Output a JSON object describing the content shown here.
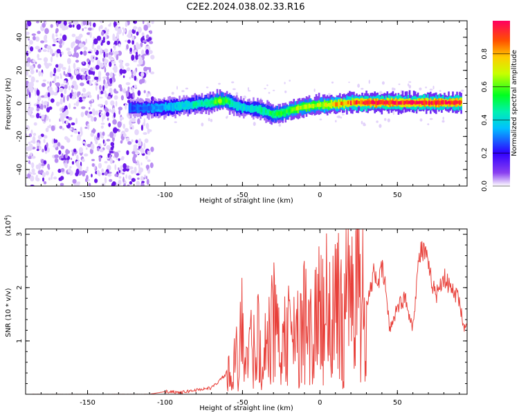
{
  "title": "C2E2.2024.038.02.33.R16",
  "chart_data": [
    {
      "type": "heatmap",
      "xlabel": "Height of straight line (km)",
      "ylabel": "Frequency (Hz)",
      "xlim": [
        -190,
        95
      ],
      "ylim": [
        -50,
        50
      ],
      "xticks": [
        -150,
        -100,
        -50,
        0,
        50
      ],
      "yticks": [
        -40,
        -20,
        0,
        20,
        40
      ],
      "ridge": {
        "x": [
          -123,
          -110,
          -100,
          -90,
          -80,
          -70,
          -65,
          -60,
          -55,
          -50,
          -45,
          -40,
          -35,
          -30,
          -25,
          -20,
          -15,
          -10,
          -5,
          0,
          5,
          10,
          15,
          20,
          25,
          30,
          40,
          50,
          60,
          70,
          80,
          92
        ],
        "frequency": [
          -3,
          -3,
          -2.5,
          -1.5,
          -0.5,
          0.5,
          1.5,
          1.5,
          -1,
          -2.5,
          -3,
          -3.5,
          -5,
          -6.5,
          -6,
          -4.5,
          -3,
          -2,
          -1.5,
          -1,
          -1,
          -0.5,
          0,
          0.5,
          0.5,
          0.5,
          0.5,
          0.5,
          0.5,
          0.5,
          0.5,
          0.5
        ],
        "amplitude": [
          0.25,
          0.3,
          0.35,
          0.4,
          0.45,
          0.5,
          0.65,
          0.55,
          0.45,
          0.4,
          0.4,
          0.45,
          0.5,
          0.55,
          0.55,
          0.6,
          0.7,
          0.65,
          0.65,
          0.7,
          0.75,
          0.8,
          0.85,
          0.9,
          0.95,
          0.98,
          1.0,
          0.98,
          0.98,
          0.98,
          0.96,
          0.95
        ]
      },
      "noise_region_x": [
        -190,
        -108
      ]
    },
    {
      "type": "line",
      "xlabel": "Height of straight line (km)",
      "ylabel": "SNR (10 * v/v)",
      "multiplier": "(x10",
      "multiplier_exp": "4",
      "multiplier_close": ")",
      "xlim": [
        -190,
        95
      ],
      "ylim": [
        0,
        3.1
      ],
      "xticks": [
        -150,
        -100,
        -50,
        0,
        50
      ],
      "yticks": [
        1,
        2,
        3
      ],
      "series": [
        {
          "name": "SNR",
          "color": "#e8403a",
          "x": [
            -190,
            -150,
            -110,
            -100,
            -95,
            -90,
            -80,
            -75,
            -70,
            -65,
            -60,
            -55,
            -52,
            -50,
            -47,
            -45,
            -40,
            -35,
            -30,
            -28,
            -25,
            -20,
            -15,
            -10,
            -5,
            0,
            3,
            5,
            8,
            10,
            15,
            18,
            20,
            22,
            25,
            26,
            28,
            30,
            35,
            38,
            40,
            42,
            45,
            50,
            55,
            60,
            63,
            65,
            68,
            70,
            75,
            78,
            80,
            85,
            90,
            93,
            95
          ],
          "values": [
            0.0,
            0.0,
            0.0,
            0.05,
            0.05,
            0.03,
            0.08,
            0.1,
            0.12,
            0.25,
            0.4,
            0.7,
            1.2,
            1.5,
            0.8,
            1.0,
            1.4,
            1.1,
            1.6,
            2.2,
            1.0,
            1.5,
            1.2,
            1.8,
            1.3,
            2.0,
            1.5,
            2.4,
            1.6,
            2.3,
            1.8,
            2.6,
            1.7,
            2.5,
            2.8,
            3.05,
            2.0,
            1.6,
            2.3,
            2.1,
            2.35,
            2.1,
            1.2,
            1.65,
            1.8,
            1.25,
            2.3,
            2.7,
            2.65,
            2.35,
            1.85,
            2.1,
            2.2,
            1.95,
            1.8,
            1.2,
            1.35
          ]
        }
      ]
    }
  ],
  "colorbar": {
    "label": "Normalized spectral amplitude",
    "ticks": [
      "0.0",
      "0.2",
      "0.4",
      "0.6",
      "0.8"
    ],
    "tick_values": [
      0.0,
      0.2,
      0.4,
      0.6,
      0.8
    ],
    "range": [
      0,
      1
    ],
    "colors": [
      "#ffffff",
      "#5a00d8",
      "#0000ff",
      "#00e8ff",
      "#00ff40",
      "#c8ff00",
      "#ffff00",
      "#ff8000",
      "#ff0060"
    ]
  }
}
